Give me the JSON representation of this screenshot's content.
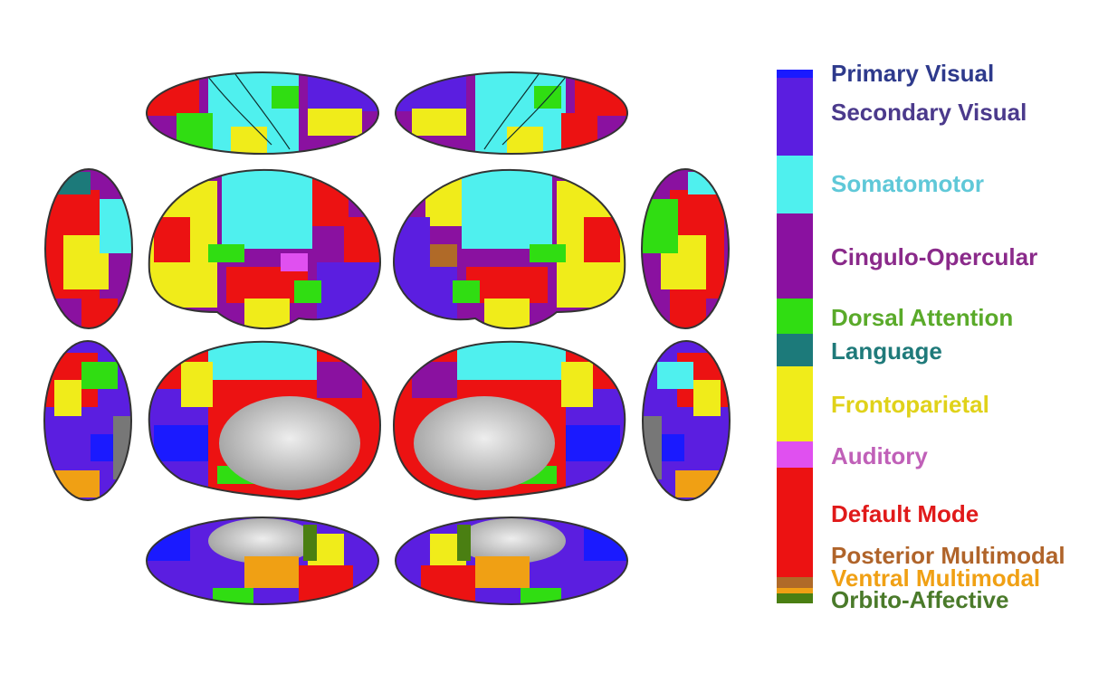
{
  "networks": [
    {
      "label": "Primary Visual",
      "color": "#1a1aff",
      "text_color": "#2e3a8c"
    },
    {
      "label": "Secondary Visual",
      "color": "#5b1ee0",
      "text_color": "#4b3a8c"
    },
    {
      "label": "Somatomotor",
      "color": "#4ff0ee",
      "text_color": "#5fc8d8"
    },
    {
      "label": "Cingulo-Opercular",
      "color": "#8a11a0",
      "text_color": "#8a2a8a"
    },
    {
      "label": "Dorsal Attention",
      "color": "#30dd12",
      "text_color": "#5aaa2a"
    },
    {
      "label": "Language",
      "color": "#1c7a7a",
      "text_color": "#1f7a7a"
    },
    {
      "label": "Frontoparietal",
      "color": "#f0ec1a",
      "text_color": "#e0d21a"
    },
    {
      "label": "Auditory",
      "color": "#e050f0",
      "text_color": "#c060b8"
    },
    {
      "label": "Default Mode",
      "color": "#ec1212",
      "text_color": "#e01a1a"
    },
    {
      "label": "Posterior Multimodal",
      "color": "#b06a28",
      "text_color": "#b0642a"
    },
    {
      "label": "Ventral Multimodal",
      "color": "#f0a014",
      "text_color": "#f0a014"
    },
    {
      "label": "Orbito-Affective",
      "color": "#4a7f12",
      "text_color": "#4a7a2a"
    }
  ],
  "surface_color": "#c8c8c8"
}
